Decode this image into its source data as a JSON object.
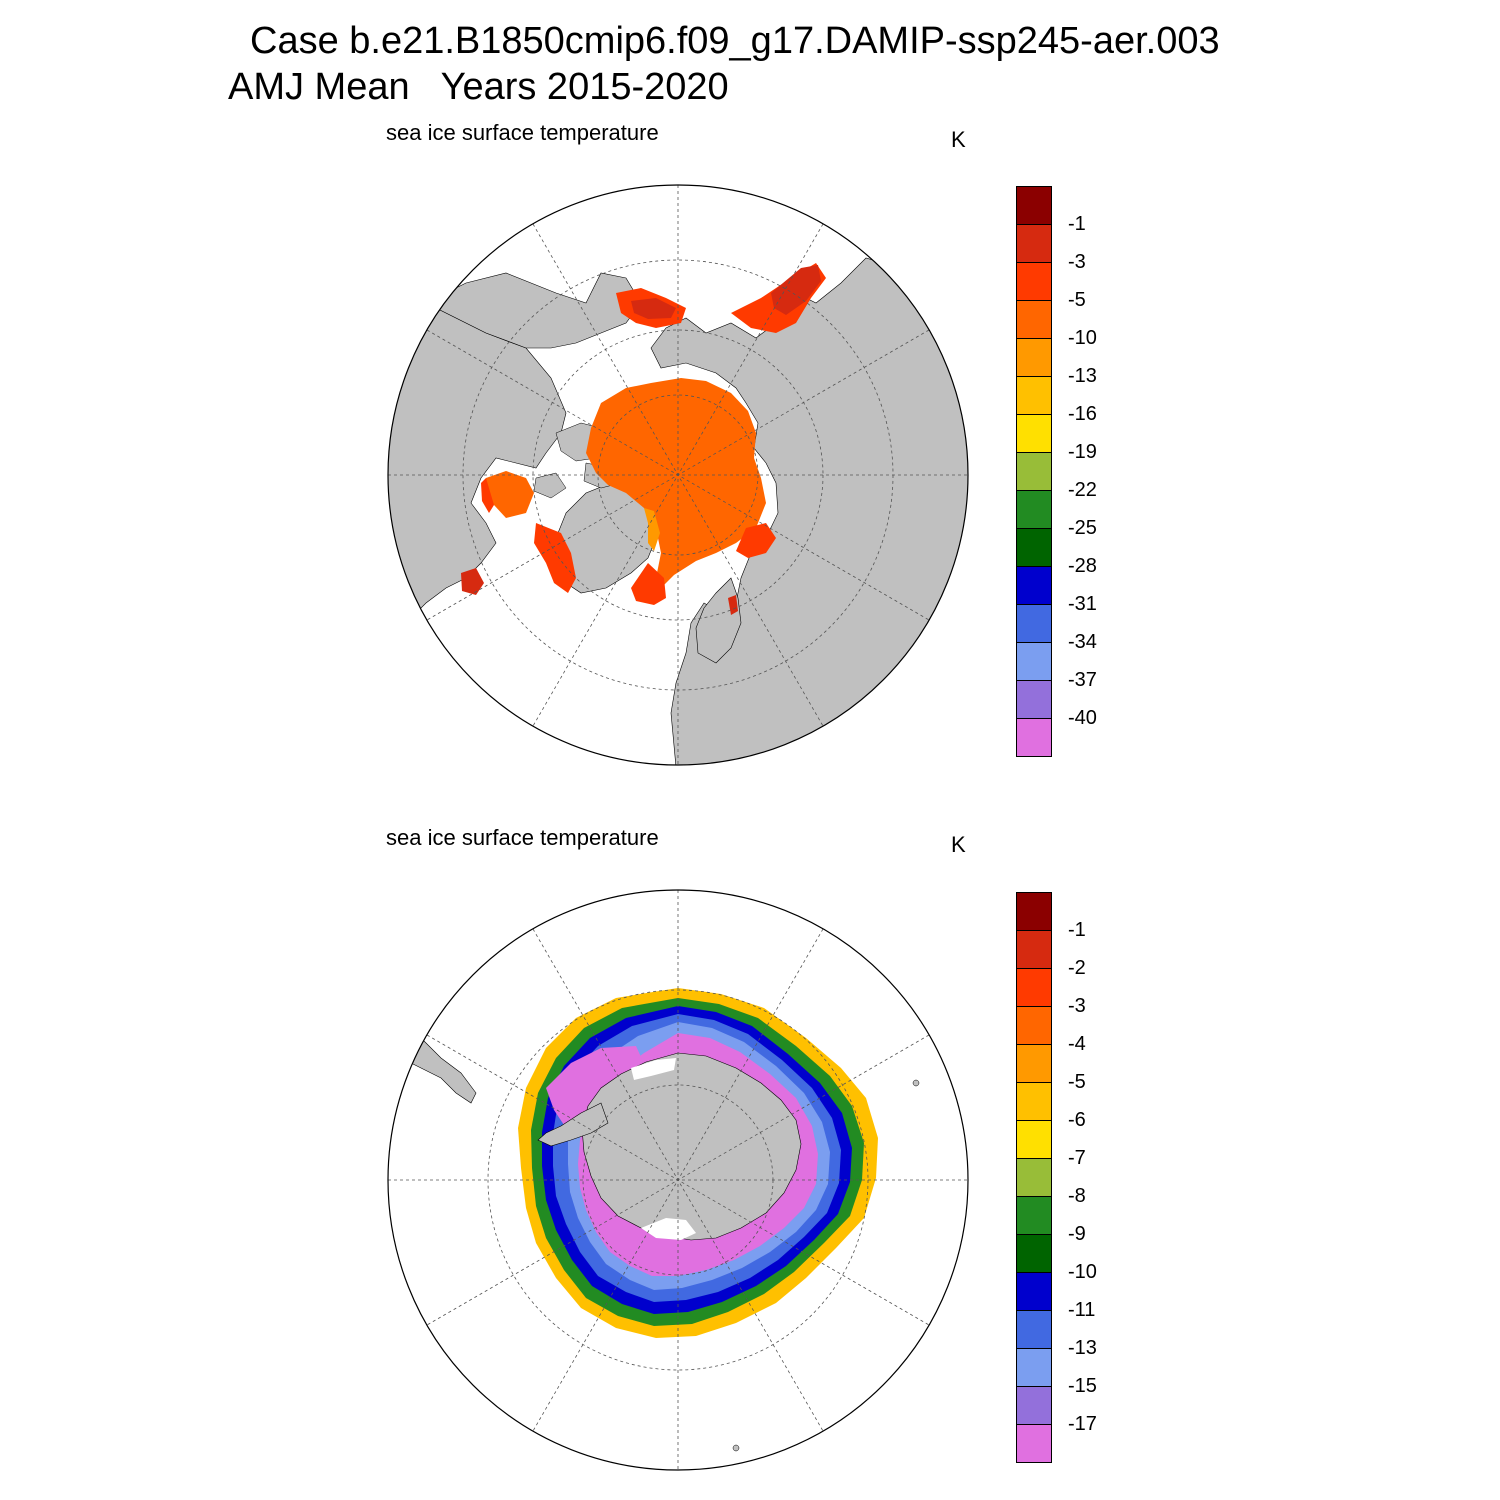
{
  "header": {
    "line1": "Case b.e21.B1850cmip6.f09_g17.DAMIP-ssp245-aer.003",
    "line2": "AMJ Mean   Years 2015-2020"
  },
  "panels": [
    {
      "subtitle": "sea ice surface temperature",
      "units": "K",
      "hemisphere": "north",
      "levels": [
        "-1",
        "-3",
        "-5",
        "-10",
        "-13",
        "-16",
        "-19",
        "-22",
        "-25",
        "-28",
        "-31",
        "-34",
        "-37",
        "-40"
      ]
    },
    {
      "subtitle": "sea ice surface temperature",
      "units": "K",
      "hemisphere": "south",
      "levels": [
        "-1",
        "-2",
        "-3",
        "-4",
        "-5",
        "-6",
        "-7",
        "-8",
        "-9",
        "-10",
        "-11",
        "-13",
        "-15",
        "-17"
      ]
    }
  ],
  "colorbar_colors": [
    "#8b0000",
    "#d62a10",
    "#ff3a00",
    "#ff6600",
    "#ff9900",
    "#ffc000",
    "#ffe000",
    "#98bd38",
    "#228b22",
    "#006400",
    "#0000cd",
    "#4169e1",
    "#7b9ef0",
    "#9370db",
    "#e070e0"
  ],
  "land_color": "#c0c0c0",
  "ocean_color": "#ffffff"
}
